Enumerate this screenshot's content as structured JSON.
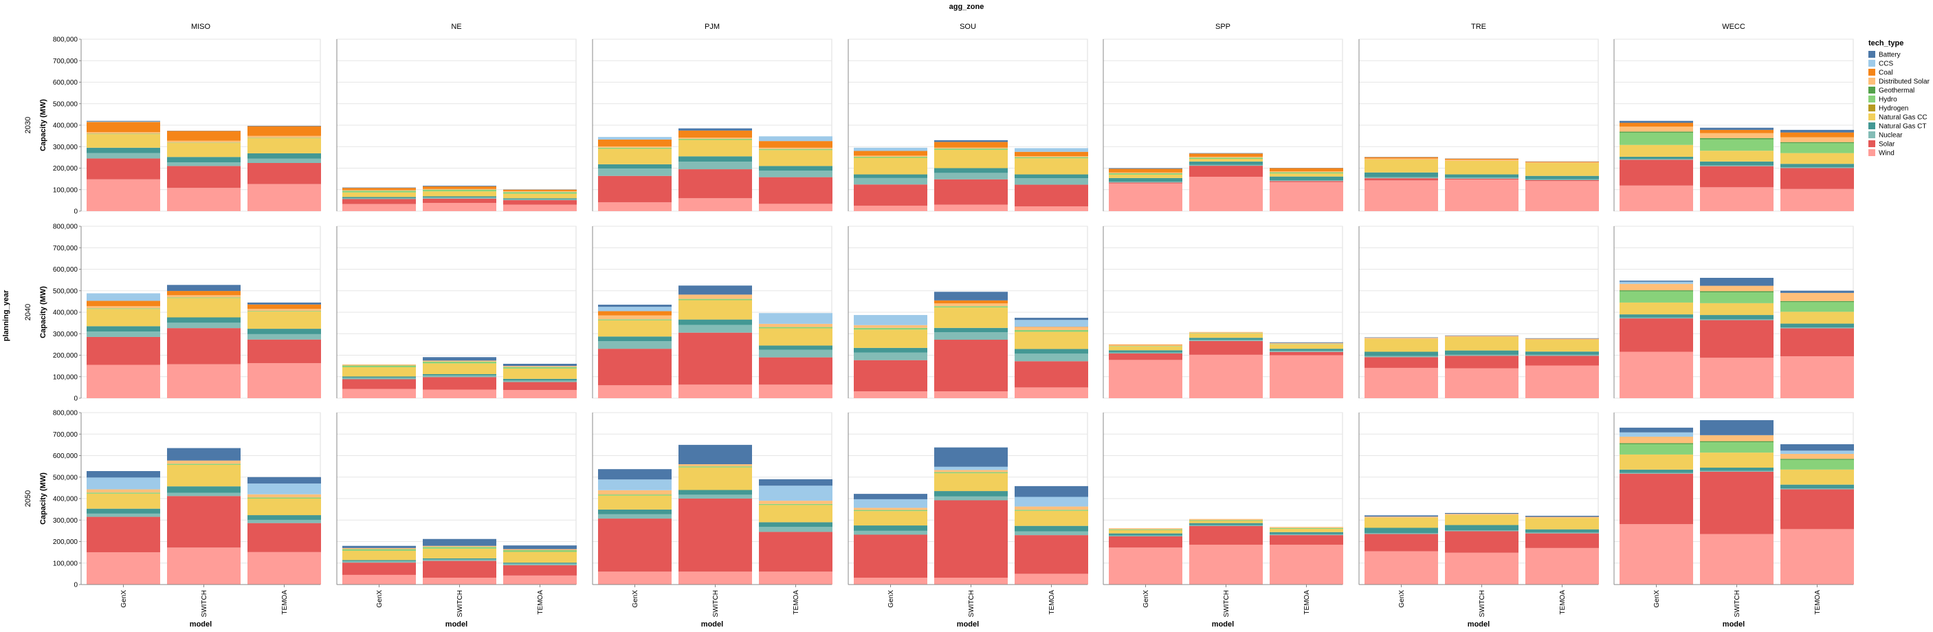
{
  "chart_data": {
    "type": "bar",
    "stacked": true,
    "facet_column_title": "agg_zone",
    "facet_row_title": "planning_year",
    "columns": [
      "MISO",
      "NE",
      "PJM",
      "SOU",
      "SPP",
      "TRE",
      "WECC"
    ],
    "rows": [
      "2030",
      "2040",
      "2050"
    ],
    "categories": [
      "GenX",
      "SWITCH",
      "TEMOA"
    ],
    "xlabel": "model",
    "ylabel": "Capacity (MW)",
    "ylim": [
      0,
      800000
    ],
    "yticks": [
      0,
      100000,
      200000,
      300000,
      400000,
      500000,
      600000,
      700000,
      800000
    ],
    "grid": true,
    "legend": {
      "title": "tech_type",
      "position": "right",
      "entries": [
        {
          "name": "Battery",
          "color": "#4c78a8"
        },
        {
          "name": "CCS",
          "color": "#9ecae9"
        },
        {
          "name": "Coal",
          "color": "#f58518"
        },
        {
          "name": "Distributed Solar",
          "color": "#ffbf79"
        },
        {
          "name": "Geothermal",
          "color": "#54a24b"
        },
        {
          "name": "Hydro",
          "color": "#88d27a"
        },
        {
          "name": "Hydrogen",
          "color": "#b79a20"
        },
        {
          "name": "Natural Gas CC",
          "color": "#f2cf5b"
        },
        {
          "name": "Natural Gas CT",
          "color": "#439894"
        },
        {
          "name": "Nuclear",
          "color": "#83bcb6"
        },
        {
          "name": "Solar",
          "color": "#e45756"
        },
        {
          "name": "Wind",
          "color": "#ff9d98"
        }
      ]
    },
    "stack_order": [
      "Wind",
      "Solar",
      "Nuclear",
      "Natural Gas CT",
      "Natural Gas CC",
      "Hydrogen",
      "Hydro",
      "Geothermal",
      "Distributed Solar",
      "Coal",
      "CCS",
      "Battery"
    ],
    "values": {
      "2030": {
        "MISO": {
          "GenX": [
            148000,
            97000,
            25000,
            25000,
            63000,
            0,
            2000,
            0,
            8000,
            47000,
            2000,
            3000
          ],
          "SWITCH": [
            108000,
            102000,
            17000,
            25000,
            65000,
            0,
            2000,
            0,
            9000,
            45000,
            0,
            1000
          ],
          "TEMOA": [
            126000,
            98000,
            20000,
            25000,
            70000,
            0,
            2000,
            0,
            9000,
            45000,
            0,
            2000
          ]
        },
        "NE": {
          "GenX": [
            33000,
            23000,
            4000,
            6000,
            21000,
            0,
            8000,
            0,
            3000,
            10000,
            0,
            2000
          ],
          "SWITCH": [
            38000,
            20000,
            6000,
            5000,
            23000,
            0,
            8000,
            0,
            3000,
            12000,
            0,
            3000
          ],
          "TEMOA": [
            30000,
            21000,
            5000,
            4000,
            21000,
            0,
            8000,
            0,
            4000,
            7000,
            0,
            1000
          ]
        },
        "PJM": {
          "GenX": [
            41000,
            123000,
            34000,
            20000,
            72000,
            0,
            5000,
            0,
            6000,
            32000,
            12000,
            0
          ],
          "SWITCH": [
            60000,
            135000,
            35000,
            25000,
            76000,
            0,
            5000,
            0,
            6000,
            33000,
            0,
            10000
          ],
          "TEMOA": [
            34000,
            124000,
            30000,
            22000,
            74000,
            0,
            5000,
            0,
            6000,
            31000,
            22000,
            0
          ]
        },
        "SOU": {
          "GenX": [
            25000,
            99000,
            30000,
            17000,
            77000,
            0,
            5000,
            0,
            5000,
            22000,
            15000,
            0
          ],
          "SWITCH": [
            30000,
            118000,
            30000,
            22000,
            85000,
            0,
            6000,
            0,
            5000,
            26000,
            0,
            8000
          ],
          "TEMOA": [
            22000,
            101000,
            30000,
            18000,
            75000,
            0,
            5000,
            0,
            5000,
            20000,
            17000,
            0
          ]
        },
        "SPP": {
          "GenX": [
            129000,
            4000,
            4000,
            17000,
            16000,
            0,
            6000,
            0,
            4000,
            17000,
            0,
            3000
          ],
          "SWITCH": [
            160000,
            51000,
            4000,
            16000,
            12000,
            0,
            6000,
            0,
            4000,
            15000,
            0,
            2000
          ],
          "TEMOA": [
            135000,
            5000,
            4000,
            17000,
            14000,
            0,
            6000,
            0,
            4000,
            15000,
            0,
            1000
          ]
        },
        "TRE": {
          "GenX": [
            143000,
            10000,
            5000,
            22000,
            60000,
            0,
            0,
            0,
            5000,
            6000,
            0,
            1000
          ],
          "SWITCH": [
            147000,
            4000,
            5000,
            15000,
            63000,
            0,
            0,
            0,
            5000,
            5000,
            0,
            1000
          ],
          "TEMOA": [
            140000,
            4000,
            5000,
            15000,
            60000,
            0,
            0,
            0,
            3000,
            3000,
            0,
            1000
          ]
        },
        "WECC": {
          "GenX": [
            119000,
            120000,
            4000,
            10000,
            55000,
            0,
            57000,
            5000,
            23000,
            18000,
            0,
            9000
          ],
          "SWITCH": [
            111000,
            98000,
            4000,
            18000,
            50000,
            0,
            53000,
            6000,
            23000,
            15000,
            0,
            10000
          ],
          "TEMOA": [
            103000,
            97000,
            4000,
            16000,
            50000,
            0,
            46000,
            5000,
            23000,
            22000,
            0,
            12000
          ]
        }
      },
      "2040": {
        "MISO": {
          "GenX": [
            155000,
            130000,
            25000,
            25000,
            80000,
            0,
            3000,
            0,
            10000,
            25000,
            35000,
            0
          ],
          "SWITCH": [
            158000,
            168000,
            25000,
            25000,
            90000,
            0,
            3000,
            0,
            10000,
            20000,
            0,
            28000
          ],
          "TEMOA": [
            163000,
            110000,
            25000,
            25000,
            80000,
            0,
            3000,
            0,
            10000,
            20000,
            0,
            9000
          ]
        },
        "NE": {
          "GenX": [
            43000,
            45000,
            7000,
            6000,
            43000,
            0,
            8000,
            0,
            5000,
            0,
            0,
            0
          ],
          "SWITCH": [
            40000,
            58000,
            8000,
            6000,
            50000,
            0,
            8000,
            0,
            5000,
            0,
            0,
            16000
          ],
          "TEMOA": [
            38000,
            37000,
            7000,
            8000,
            48000,
            0,
            7000,
            0,
            5000,
            0,
            0,
            10000
          ]
        },
        "PJM": {
          "GenX": [
            60000,
            170000,
            35000,
            22000,
            75000,
            0,
            5000,
            0,
            18000,
            20000,
            20000,
            10000
          ],
          "SWITCH": [
            63000,
            242000,
            36000,
            25000,
            90000,
            0,
            6000,
            0,
            20000,
            0,
            0,
            42000
          ],
          "TEMOA": [
            63000,
            127000,
            35000,
            20000,
            80000,
            0,
            6000,
            0,
            15000,
            0,
            50000,
            0
          ]
        },
        "SOU": {
          "GenX": [
            32000,
            145000,
            35000,
            22000,
            85000,
            0,
            8000,
            0,
            13000,
            0,
            47000,
            0
          ],
          "SWITCH": [
            32000,
            240000,
            35000,
            20000,
            95000,
            0,
            6000,
            0,
            13000,
            14000,
            0,
            40000
          ],
          "TEMOA": [
            50000,
            122000,
            35000,
            22000,
            80000,
            0,
            8000,
            0,
            13000,
            2000,
            32000,
            10000
          ]
        },
        "SPP": {
          "GenX": [
            178000,
            30000,
            5000,
            10000,
            18000,
            0,
            2000,
            0,
            5000,
            2000,
            0,
            0
          ],
          "SWITCH": [
            202000,
            64000,
            5000,
            10000,
            20000,
            0,
            2000,
            0,
            5000,
            0,
            0,
            0
          ],
          "TEMOA": [
            200000,
            15000,
            5000,
            10000,
            20000,
            0,
            2000,
            0,
            5000,
            0,
            0,
            3000
          ]
        },
        "TRE": {
          "GenX": [
            141000,
            50000,
            5000,
            20000,
            60000,
            0,
            0,
            0,
            5000,
            0,
            0,
            2000
          ],
          "SWITCH": [
            139000,
            58000,
            5000,
            20000,
            63000,
            0,
            0,
            0,
            5000,
            0,
            0,
            2000
          ],
          "TEMOA": [
            152000,
            45000,
            5000,
            15000,
            55000,
            0,
            0,
            0,
            5000,
            0,
            0,
            2000
          ]
        },
        "WECC": {
          "GenX": [
            216000,
            155000,
            4000,
            15000,
            55000,
            0,
            52000,
            5000,
            30000,
            0,
            10000,
            5000
          ],
          "SWITCH": [
            188000,
            175000,
            4000,
            20000,
            55000,
            0,
            50000,
            6000,
            25000,
            0,
            0,
            37000
          ],
          "TEMOA": [
            195000,
            130000,
            4000,
            18000,
            55000,
            0,
            45000,
            5000,
            38000,
            0,
            0,
            10000
          ]
        }
      },
      "2050": {
        "MISO": {
          "GenX": [
            150000,
            165000,
            15000,
            23000,
            70000,
            0,
            5000,
            0,
            15000,
            0,
            55000,
            30000
          ],
          "SWITCH": [
            172000,
            240000,
            15000,
            30000,
            100000,
            0,
            5000,
            0,
            15000,
            0,
            0,
            58000
          ],
          "TEMOA": [
            151000,
            135000,
            15000,
            22000,
            77000,
            0,
            5000,
            0,
            15000,
            0,
            50000,
            30000
          ]
        },
        "NE": {
          "GenX": [
            45000,
            57000,
            7000,
            5000,
            43000,
            0,
            8000,
            0,
            5000,
            0,
            0,
            10000
          ],
          "SWITCH": [
            32000,
            78000,
            7000,
            5000,
            45000,
            0,
            8000,
            0,
            5000,
            0,
            0,
            32000
          ],
          "TEMOA": [
            42000,
            48000,
            7000,
            5000,
            50000,
            0,
            8000,
            0,
            5000,
            0,
            0,
            17000
          ]
        },
        "PJM": {
          "GenX": [
            60000,
            247000,
            20000,
            22000,
            65000,
            0,
            5000,
            0,
            20000,
            0,
            50000,
            48000
          ],
          "SWITCH": [
            60000,
            340000,
            18000,
            22000,
            105000,
            0,
            5000,
            0,
            10000,
            0,
            0,
            90000
          ],
          "TEMOA": [
            60000,
            185000,
            23000,
            22000,
            80000,
            0,
            5000,
            0,
            15000,
            0,
            70000,
            30000
          ]
        },
        "SOU": {
          "GenX": [
            32000,
            200000,
            18000,
            25000,
            67000,
            0,
            5000,
            0,
            10000,
            0,
            40000,
            25000
          ],
          "SWITCH": [
            32000,
            360000,
            18000,
            25000,
            83000,
            0,
            5000,
            0,
            10000,
            0,
            15000,
            90000
          ],
          "TEMOA": [
            50000,
            180000,
            18000,
            25000,
            70000,
            0,
            5000,
            0,
            15000,
            0,
            45000,
            50000
          ]
        },
        "SPP": {
          "GenX": [
            172000,
            52000,
            4000,
            10000,
            15000,
            0,
            4000,
            0,
            5000,
            0,
            0,
            0
          ],
          "SWITCH": [
            185000,
            87000,
            4000,
            10000,
            10000,
            0,
            4000,
            0,
            5000,
            0,
            0,
            0
          ],
          "TEMOA": [
            185000,
            45000,
            4000,
            10000,
            15000,
            0,
            4000,
            0,
            5000,
            0,
            0,
            0
          ]
        },
        "TRE": {
          "GenX": [
            155000,
            80000,
            4000,
            25000,
            47000,
            0,
            0,
            0,
            5000,
            0,
            0,
            6000
          ],
          "SWITCH": [
            148000,
            100000,
            4000,
            25000,
            47000,
            0,
            0,
            0,
            5000,
            0,
            0,
            4000
          ],
          "TEMOA": [
            170000,
            68000,
            4000,
            15000,
            53000,
            0,
            0,
            0,
            5000,
            0,
            0,
            5000
          ]
        },
        "WECC": {
          "GenX": [
            281000,
            235000,
            4000,
            15000,
            70000,
            0,
            48000,
            5000,
            30000,
            0,
            20000,
            22000
          ],
          "SWITCH": [
            235000,
            290000,
            4000,
            15000,
            70000,
            0,
            48000,
            5000,
            28000,
            0,
            0,
            70000
          ],
          "TEMOA": [
            258000,
            185000,
            4000,
            18000,
            70000,
            0,
            45000,
            5000,
            23000,
            0,
            15000,
            30000
          ]
        }
      }
    }
  }
}
